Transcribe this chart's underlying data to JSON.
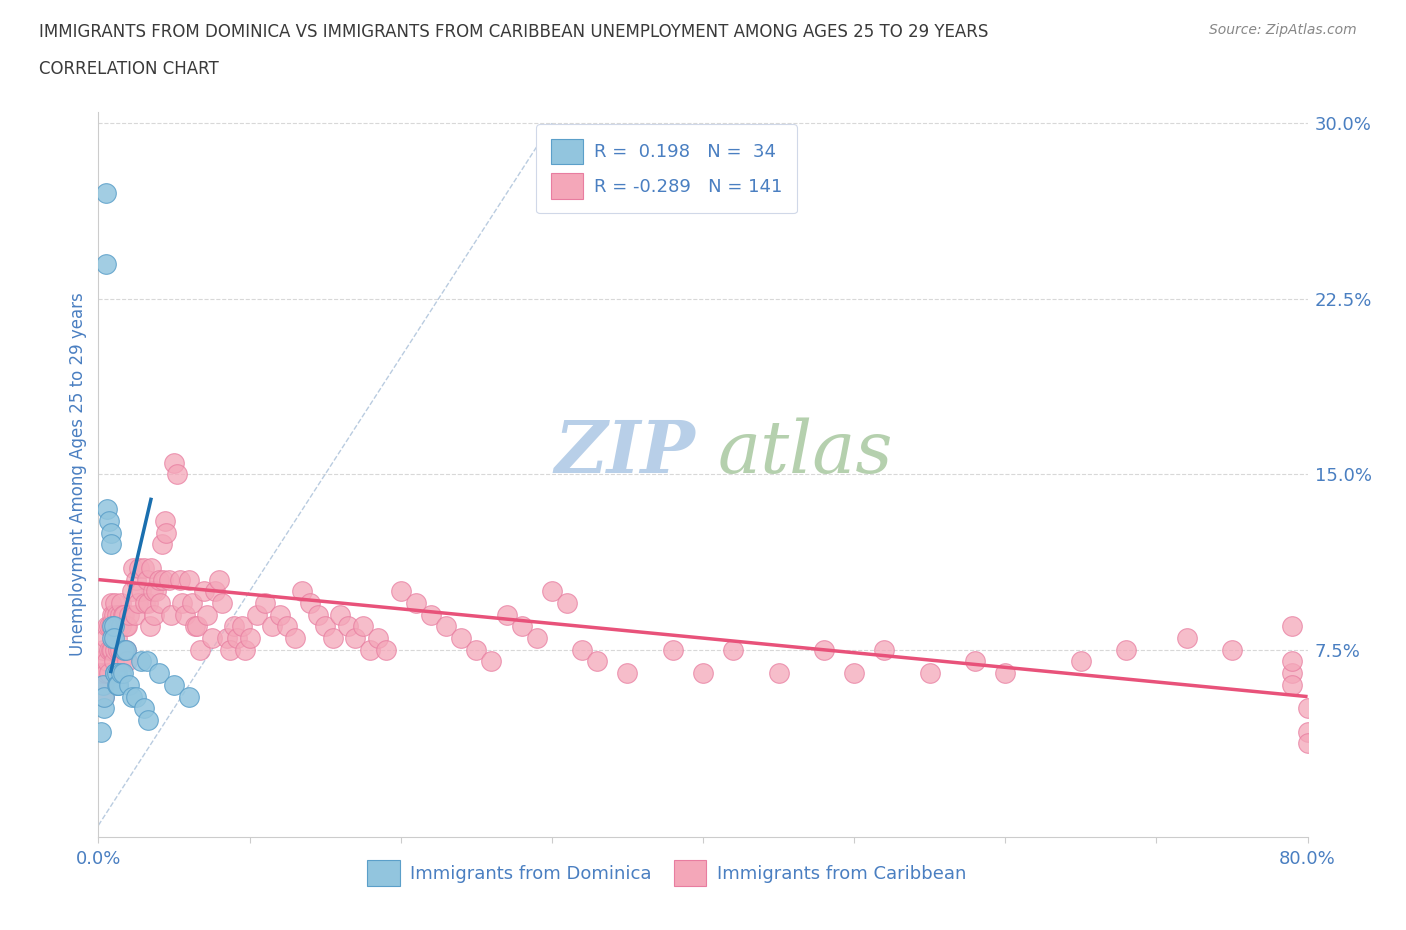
{
  "title": "IMMIGRANTS FROM DOMINICA VS IMMIGRANTS FROM CARIBBEAN UNEMPLOYMENT AMONG AGES 25 TO 29 YEARS",
  "subtitle": "CORRELATION CHART",
  "source": "Source: ZipAtlas.com",
  "ylabel": "Unemployment Among Ages 25 to 29 years",
  "xlim": [
    0,
    0.8
  ],
  "ylim": [
    -0.005,
    0.305
  ],
  "yticks_right": [
    0.075,
    0.15,
    0.225,
    0.3
  ],
  "ytick_right_labels": [
    "7.5%",
    "15.0%",
    "22.5%",
    "30.0%"
  ],
  "dominica_R": 0.198,
  "dominica_N": 34,
  "caribbean_R": -0.289,
  "caribbean_N": 141,
  "dominica_color": "#92c5de",
  "dominica_edge": "#5b9fc9",
  "caribbean_color": "#f4a7b9",
  "caribbean_edge": "#e87da0",
  "dominica_trend_color": "#1a6faf",
  "caribbean_trend_color": "#e8527a",
  "ref_line_color": "#a8bfd8",
  "grid_color": "#d8d8d8",
  "title_color": "#3a3a3a",
  "axis_label_color": "#4a7fc1",
  "watermark_zip_color": "#b8cfe8",
  "watermark_atlas_color": "#a8c8a0",
  "legend_text_color": "#4a7fc1",
  "dominica_x": [
    0.002,
    0.003,
    0.004,
    0.004,
    0.005,
    0.005,
    0.006,
    0.007,
    0.008,
    0.008,
    0.009,
    0.009,
    0.01,
    0.01,
    0.011,
    0.011,
    0.012,
    0.012,
    0.013,
    0.013,
    0.015,
    0.016,
    0.017,
    0.018,
    0.02,
    0.022,
    0.025,
    0.028,
    0.03,
    0.032,
    0.033,
    0.04,
    0.05,
    0.06
  ],
  "dominica_y": [
    0.04,
    0.06,
    0.05,
    0.055,
    0.27,
    0.24,
    0.135,
    0.13,
    0.125,
    0.12,
    0.085,
    0.08,
    0.085,
    0.08,
    0.065,
    0.065,
    0.065,
    0.06,
    0.06,
    0.06,
    0.065,
    0.065,
    0.075,
    0.075,
    0.06,
    0.055,
    0.055,
    0.07,
    0.05,
    0.07,
    0.045,
    0.065,
    0.06,
    0.055
  ],
  "dominica_trend_x": [
    0.008,
    0.035
  ],
  "dominica_trend_y": [
    0.065,
    0.14
  ],
  "caribbean_trend_x": [
    0.0,
    0.8
  ],
  "caribbean_trend_y": [
    0.105,
    0.055
  ],
  "car_x_low": [
    0.001,
    0.002,
    0.003,
    0.004,
    0.004,
    0.005,
    0.005,
    0.006,
    0.006,
    0.007,
    0.007,
    0.007,
    0.008,
    0.008,
    0.008,
    0.009,
    0.009,
    0.01,
    0.01,
    0.01,
    0.011,
    0.011,
    0.012,
    0.012,
    0.013,
    0.013,
    0.014,
    0.014,
    0.015,
    0.015,
    0.015,
    0.016,
    0.016,
    0.017,
    0.017,
    0.018,
    0.018,
    0.019,
    0.019,
    0.02
  ],
  "car_y_low": [
    0.07,
    0.065,
    0.075,
    0.06,
    0.055,
    0.08,
    0.065,
    0.085,
    0.07,
    0.085,
    0.075,
    0.065,
    0.095,
    0.085,
    0.075,
    0.09,
    0.075,
    0.09,
    0.085,
    0.07,
    0.095,
    0.075,
    0.09,
    0.08,
    0.085,
    0.075,
    0.09,
    0.075,
    0.095,
    0.085,
    0.07,
    0.09,
    0.075,
    0.09,
    0.075,
    0.085,
    0.075,
    0.085,
    0.07,
    0.09
  ],
  "car_x_mid": [
    0.022,
    0.023,
    0.024,
    0.025,
    0.026,
    0.027,
    0.028,
    0.03,
    0.031,
    0.032,
    0.033,
    0.034,
    0.035,
    0.036,
    0.037,
    0.038,
    0.04,
    0.041,
    0.042,
    0.043,
    0.044,
    0.045,
    0.047,
    0.048,
    0.05,
    0.052,
    0.054,
    0.055,
    0.057,
    0.06,
    0.062,
    0.064,
    0.065,
    0.067,
    0.07,
    0.072,
    0.075,
    0.077,
    0.08,
    0.082,
    0.085,
    0.087,
    0.09,
    0.092,
    0.095,
    0.097,
    0.1,
    0.105,
    0.11,
    0.115
  ],
  "car_y_mid": [
    0.1,
    0.11,
    0.09,
    0.105,
    0.095,
    0.11,
    0.1,
    0.11,
    0.095,
    0.105,
    0.095,
    0.085,
    0.11,
    0.1,
    0.09,
    0.1,
    0.105,
    0.095,
    0.12,
    0.105,
    0.13,
    0.125,
    0.105,
    0.09,
    0.155,
    0.15,
    0.105,
    0.095,
    0.09,
    0.105,
    0.095,
    0.085,
    0.085,
    0.075,
    0.1,
    0.09,
    0.08,
    0.1,
    0.105,
    0.095,
    0.08,
    0.075,
    0.085,
    0.08,
    0.085,
    0.075,
    0.08,
    0.09,
    0.095,
    0.085
  ],
  "car_x_high": [
    0.12,
    0.125,
    0.13,
    0.135,
    0.14,
    0.145,
    0.15,
    0.155,
    0.16,
    0.165,
    0.17,
    0.175,
    0.18,
    0.185,
    0.19,
    0.2,
    0.21,
    0.22,
    0.23,
    0.24,
    0.25,
    0.26,
    0.27,
    0.28,
    0.29,
    0.3,
    0.31,
    0.32,
    0.33,
    0.35,
    0.38,
    0.4,
    0.42,
    0.45,
    0.48,
    0.5,
    0.52,
    0.55,
    0.58,
    0.6,
    0.65,
    0.68,
    0.72,
    0.75,
    0.79,
    0.79,
    0.79,
    0.8,
    0.8,
    0.8,
    0.79
  ],
  "car_y_high": [
    0.09,
    0.085,
    0.08,
    0.1,
    0.095,
    0.09,
    0.085,
    0.08,
    0.09,
    0.085,
    0.08,
    0.085,
    0.075,
    0.08,
    0.075,
    0.1,
    0.095,
    0.09,
    0.085,
    0.08,
    0.075,
    0.07,
    0.09,
    0.085,
    0.08,
    0.1,
    0.095,
    0.075,
    0.07,
    0.065,
    0.075,
    0.065,
    0.075,
    0.065,
    0.075,
    0.065,
    0.075,
    0.065,
    0.07,
    0.065,
    0.07,
    0.075,
    0.08,
    0.075,
    0.065,
    0.07,
    0.085,
    0.05,
    0.04,
    0.035,
    0.06
  ]
}
